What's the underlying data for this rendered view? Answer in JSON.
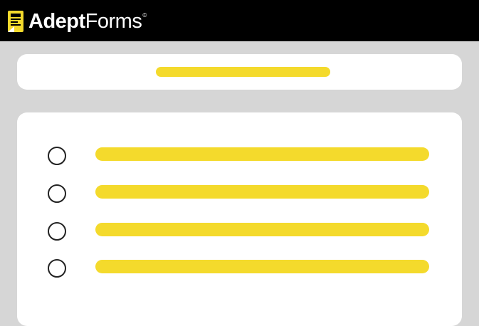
{
  "header": {
    "brand_bold": "Adept",
    "brand_light": "Forms",
    "registered_mark": "©",
    "logo_icon": "form-document-icon"
  },
  "colors": {
    "header_bg": "#000000",
    "page_bg": "#d6d6d6",
    "card_bg": "#ffffff",
    "placeholder_accent": "#f4da2c",
    "radio_border": "#222222"
  },
  "question": {
    "title_placeholder": true
  },
  "options": [
    {
      "selected": false
    },
    {
      "selected": false
    },
    {
      "selected": false
    },
    {
      "selected": false
    }
  ]
}
